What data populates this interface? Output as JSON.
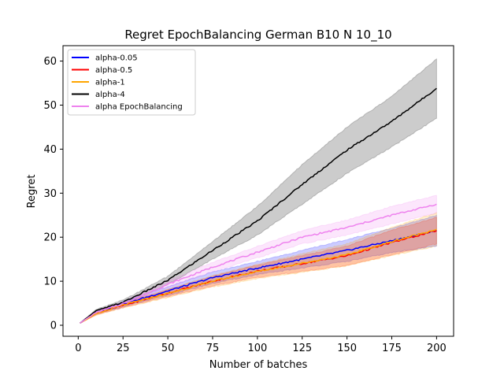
{
  "chart_data": {
    "type": "line",
    "title": "Regret EpochBalancing German B10 N 10_10",
    "xlabel": "Number of batches",
    "ylabel": "Regret",
    "xlim": [
      -8.5,
      209.5
    ],
    "ylim": [
      -2.5,
      63.5
    ],
    "xticks": [
      0,
      25,
      50,
      75,
      100,
      125,
      150,
      175,
      200
    ],
    "yticks": [
      0,
      10,
      20,
      30,
      40,
      50,
      60
    ],
    "grid": false,
    "legend_position": "top-left",
    "band": "shaded region around each mean line",
    "series": [
      {
        "name": "alpha-0.05",
        "color": "#0000ff",
        "x": [
          1,
          10,
          25,
          50,
          75,
          100,
          125,
          150,
          175,
          200
        ],
        "values": [
          0.5,
          2.8,
          4.8,
          7.8,
          10.8,
          13.0,
          15.0,
          17.0,
          19.2,
          21.5
        ],
        "lower": [
          0.5,
          2.5,
          4.2,
          6.8,
          9.5,
          11.5,
          13.0,
          14.5,
          16.5,
          18.0
        ],
        "upper": [
          0.5,
          3.1,
          5.4,
          8.8,
          12.1,
          14.5,
          17.0,
          19.5,
          22.0,
          25.0
        ]
      },
      {
        "name": "alpha-0.5",
        "color": "#ff0000",
        "x": [
          1,
          10,
          25,
          50,
          75,
          100,
          125,
          150,
          175,
          200
        ],
        "values": [
          0.5,
          2.7,
          4.5,
          7.3,
          10.0,
          12.3,
          14.0,
          15.8,
          18.8,
          21.5
        ],
        "lower": [
          0.5,
          2.4,
          4.0,
          6.5,
          8.9,
          10.9,
          12.2,
          13.6,
          16.0,
          18.5
        ],
        "upper": [
          0.5,
          3.0,
          5.0,
          8.1,
          11.1,
          13.7,
          15.8,
          18.0,
          21.6,
          24.5
        ]
      },
      {
        "name": "alpha-1",
        "color": "#ffa500",
        "x": [
          1,
          10,
          25,
          50,
          75,
          100,
          125,
          150,
          175,
          200
        ],
        "values": [
          0.5,
          2.6,
          4.6,
          7.2,
          10.0,
          12.2,
          14.1,
          16.0,
          19.0,
          21.8
        ],
        "lower": [
          0.5,
          2.3,
          4.0,
          6.3,
          8.7,
          10.6,
          12.0,
          13.5,
          15.8,
          18.0
        ],
        "upper": [
          0.5,
          2.9,
          5.2,
          8.1,
          11.3,
          13.8,
          16.2,
          18.5,
          22.2,
          25.6
        ]
      },
      {
        "name": "alpha-4",
        "color": "#000000",
        "x": [
          1,
          10,
          25,
          50,
          75,
          100,
          125,
          150,
          175,
          200
        ],
        "values": [
          0.5,
          3.3,
          5.2,
          10.2,
          17.0,
          23.7,
          32.0,
          39.8,
          46.3,
          53.8
        ],
        "lower": [
          0.5,
          3.0,
          4.7,
          9.3,
          15.0,
          20.5,
          27.5,
          34.5,
          40.5,
          47.0
        ],
        "upper": [
          0.5,
          3.6,
          5.7,
          11.1,
          19.0,
          27.0,
          36.5,
          45.0,
          52.0,
          60.5
        ]
      },
      {
        "name": "alpha EpochBalancing",
        "color": "#ee82ee",
        "x": [
          1,
          10,
          25,
          50,
          75,
          100,
          125,
          150,
          175,
          200
        ],
        "values": [
          0.5,
          2.9,
          4.9,
          9.3,
          13.2,
          16.6,
          20.0,
          22.2,
          25.0,
          27.5
        ],
        "lower": [
          0.5,
          2.6,
          4.4,
          8.6,
          12.1,
          15.3,
          18.5,
          20.5,
          23.0,
          25.5
        ],
        "upper": [
          0.5,
          3.2,
          5.4,
          10.0,
          14.3,
          17.9,
          21.5,
          23.9,
          27.0,
          29.5
        ]
      }
    ]
  }
}
